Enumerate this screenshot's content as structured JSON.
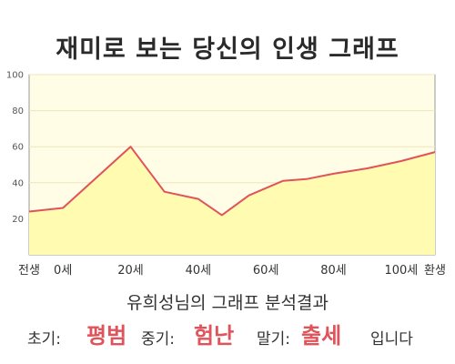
{
  "title": "재미로 보는 당신의 인생 그래프",
  "summary": "유희성님의 그래프 분석결과",
  "result": {
    "early_label": "초기:",
    "early_value": "평범",
    "middle_label": "중기:",
    "middle_value": "험난",
    "late_label": "말기:",
    "late_value": "출세",
    "ending": "입니다"
  },
  "colors": {
    "line": "#e0535a",
    "fill": "#fffbb0",
    "plot_bg": "#fffde6",
    "accent": "#e0535a"
  },
  "chart_data": {
    "type": "area",
    "title": "재미로 보는 당신의 인생 그래프",
    "xlabel": "",
    "ylabel": "",
    "x_range": [
      -10,
      110
    ],
    "ylim": [
      0,
      100
    ],
    "y_ticks": [
      20,
      40,
      60,
      80,
      100
    ],
    "y_tick_labels": [
      "20",
      "40",
      "60",
      "80",
      "100"
    ],
    "x_ticks": [
      {
        "x": -10,
        "label": "전생"
      },
      {
        "x": 0,
        "label": "0세"
      },
      {
        "x": 20,
        "label": "20세"
      },
      {
        "x": 40,
        "label": "40세"
      },
      {
        "x": 60,
        "label": "60세"
      },
      {
        "x": 80,
        "label": "80세"
      },
      {
        "x": 100,
        "label": "100세"
      },
      {
        "x": 110,
        "label": "환생"
      }
    ],
    "grid": true,
    "legend": "none",
    "series": [
      {
        "x": [
          -10,
          0,
          20,
          30,
          40,
          47,
          55,
          65,
          72,
          80,
          90,
          100,
          110
        ],
        "values": [
          24,
          26,
          60,
          35,
          31,
          22,
          33,
          41,
          42,
          45,
          48,
          52,
          57
        ]
      }
    ]
  }
}
